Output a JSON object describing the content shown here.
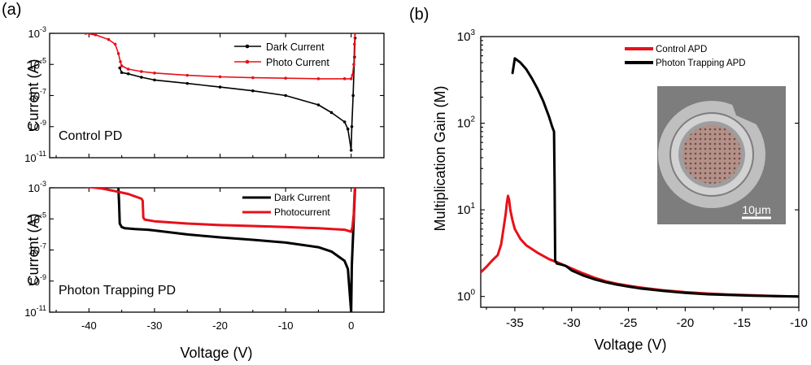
{
  "chart_data": [
    {
      "panel": "(a)",
      "type": "line",
      "scale_y": "log",
      "xlabel": "",
      "ylabel": "Current (A)",
      "inset_label": "Control PD",
      "xlim": [
        -46,
        5
      ],
      "ylim": [
        1e-11,
        0.001
      ],
      "x_ticks": [],
      "y_ticks": [
        "10-3",
        "10-5",
        "10-7",
        "10-9",
        "10-11"
      ],
      "legend": "top-right",
      "series": [
        {
          "name": "Dark Current",
          "color": "#000000",
          "marker": "dot",
          "x": [
            -35.3,
            -35,
            -34,
            -32,
            -30,
            -25,
            -20,
            -15,
            -10,
            -5,
            -3,
            -1,
            -0.5,
            0,
            0.1,
            0.3,
            0.5,
            0.6
          ],
          "y": [
            6e-06,
            3e-06,
            2.5e-06,
            1.5e-06,
            1e-06,
            6e-07,
            3.5e-07,
            2e-07,
            1e-07,
            2.5e-08,
            8e-09,
            2e-09,
            7e-10,
            3e-11,
            1e-09,
            1e-07,
            3e-05,
            0.0005
          ]
        },
        {
          "name": "Photo Current",
          "color": "#e8101a",
          "marker": "dot",
          "x": [
            -40.5,
            -39,
            -37,
            -36,
            -35.5,
            -35.2,
            -35,
            -34,
            -32,
            -30,
            -25,
            -20,
            -15,
            -10,
            -5,
            -1,
            0,
            0.2,
            0.4,
            0.5,
            0.6
          ],
          "y": [
            0.001,
            0.0008,
            0.0004,
            0.0002,
            5e-05,
            1.5e-05,
            8e-06,
            5e-06,
            3.5e-06,
            2.8e-06,
            2e-06,
            1.6e-06,
            1.4e-06,
            1.3e-06,
            1.2e-06,
            1.2e-06,
            1.2e-06,
            2e-06,
            1e-05,
            0.0002,
            0.001
          ]
        }
      ]
    },
    {
      "panel": "",
      "type": "line",
      "scale_y": "log",
      "xlabel": "Voltage (V)",
      "ylabel": "Current (A)",
      "inset_label": "Photon Trapping PD",
      "xlim": [
        -46,
        5
      ],
      "ylim": [
        1e-11,
        0.001
      ],
      "x_ticks": [
        "-40",
        "-30",
        "-20",
        "-10",
        "0"
      ],
      "y_ticks": [
        "10-3",
        "10-5",
        "10-7",
        "10-9",
        "10-11"
      ],
      "legend": "top-right",
      "series": [
        {
          "name": "Dark Current",
          "color": "#000000",
          "marker": "none",
          "x": [
            -35.5,
            -35.4,
            -35.3,
            -35,
            -34.5,
            -33,
            -31,
            -30,
            -25,
            -20,
            -15,
            -10,
            -5,
            -3,
            -1,
            -0.5,
            0,
            0.1,
            0.3,
            0.5,
            0.6
          ],
          "y": [
            0.0008,
            0.0001,
            5e-06,
            3e-06,
            2.5e-06,
            2.2e-06,
            2e-06,
            1.8e-06,
            1e-06,
            6.5e-07,
            4.5e-07,
            3e-07,
            1.5e-07,
            8e-08,
            2e-08,
            6e-09,
            1e-11,
            1e-08,
            1e-06,
            0.0001,
            0.001
          ]
        },
        {
          "name": "Photocurrent",
          "color": "#e8101a",
          "marker": "none",
          "x": [
            -40.5,
            -38,
            -36,
            -34,
            -32,
            -31.8,
            -31.7,
            -31.5,
            -30,
            -25,
            -20,
            -15,
            -10,
            -5,
            -1,
            0,
            0.2,
            0.4,
            0.5,
            0.6
          ],
          "y": [
            0.0012,
            0.0009,
            0.0006,
            0.0004,
            0.0002,
            0.00015,
            1.2e-05,
            9e-06,
            7e-06,
            5e-06,
            4e-06,
            3.5e-06,
            3e-06,
            2.5e-06,
            2e-06,
            1.5e-06,
            3e-06,
            2e-05,
            0.0003,
            0.0013
          ]
        }
      ]
    },
    {
      "panel": "(b)",
      "type": "line",
      "scale_y": "log",
      "xlabel": "Voltage (V)",
      "ylabel": "Multiplication Gain (M)",
      "inset_label": "",
      "xlim": [
        -38,
        -10
      ],
      "ylim": [
        0.75,
        1000
      ],
      "x_ticks": [
        "-35",
        "-30",
        "-25",
        "-20",
        "-15",
        "-10"
      ],
      "y_ticks": [
        "10^3",
        "10^2",
        "10^1",
        "10^0"
      ],
      "legend": "top-center",
      "inset_image": {
        "scale_bar_label": "10μm"
      },
      "series": [
        {
          "name": "Control APD",
          "color": "#e8101a",
          "x": [
            -38,
            -37.5,
            -37,
            -36.5,
            -36.2,
            -36,
            -35.8,
            -35.7,
            -35.6,
            -35.5,
            -35.4,
            -35.2,
            -35,
            -34.5,
            -34,
            -33,
            -32,
            -31,
            -30,
            -29,
            -28,
            -27,
            -26,
            -25,
            -24,
            -22,
            -20,
            -18,
            -16,
            -14,
            -12,
            -10
          ],
          "y": [
            1.9,
            2.2,
            2.6,
            3.0,
            4.0,
            6.0,
            9.0,
            12.0,
            14.5,
            13.0,
            10.0,
            7.5,
            6.0,
            4.6,
            3.9,
            3.2,
            2.7,
            2.4,
            2.1,
            1.85,
            1.65,
            1.5,
            1.4,
            1.33,
            1.27,
            1.18,
            1.12,
            1.08,
            1.05,
            1.03,
            1.01,
            1.0
          ]
        },
        {
          "name": "Photon Trapping APD",
          "color": "#000000",
          "x": [
            -35.2,
            -35,
            -34.5,
            -34,
            -33.5,
            -33,
            -32.5,
            -32,
            -31.7,
            -31.55,
            -31.5,
            -31.45,
            -31.3,
            -31,
            -30.5,
            -30,
            -29,
            -28,
            -27,
            -26,
            -25,
            -24,
            -22,
            -20,
            -18,
            -16,
            -14,
            -12,
            -10
          ],
          "y": [
            380,
            560,
            500,
            420,
            330,
            250,
            180,
            120,
            90,
            80,
            20,
            2.6,
            2.4,
            2.35,
            2.25,
            2.0,
            1.75,
            1.58,
            1.46,
            1.37,
            1.3,
            1.24,
            1.16,
            1.1,
            1.06,
            1.04,
            1.02,
            1.01,
            1.0
          ]
        }
      ]
    }
  ]
}
